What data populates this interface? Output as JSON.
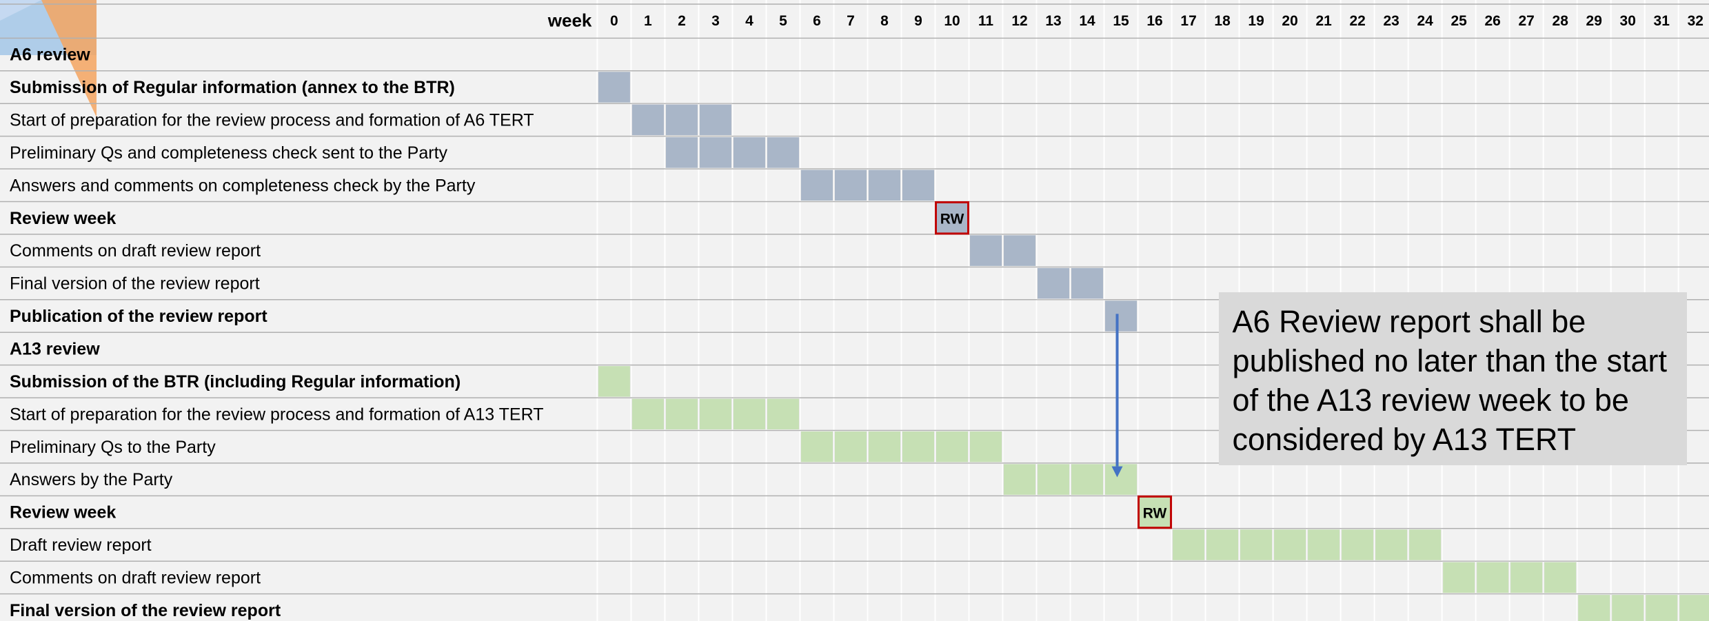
{
  "header": {
    "week_label": "week",
    "weeks": [
      0,
      1,
      2,
      3,
      4,
      5,
      6,
      7,
      8,
      9,
      10,
      11,
      12,
      13,
      14,
      15,
      16,
      17,
      18,
      19,
      20,
      21,
      22,
      23,
      24,
      25,
      26,
      27,
      28,
      29,
      30,
      31,
      32
    ]
  },
  "tasks": [
    {
      "label": "A6 review",
      "bold": true
    },
    {
      "label": "Submission of Regular information (annex to the BTR)",
      "bold": true,
      "start": 0,
      "end": 0,
      "color": "#a9b6c8"
    },
    {
      "label": "Start of preparation for the review process and formation of A6 TERT",
      "bold": false,
      "start": 1,
      "end": 3,
      "color": "#a9b6c8"
    },
    {
      "label": "Preliminary Qs and completeness check sent to the Party",
      "bold": false,
      "start": 2,
      "end": 5,
      "color": "#a9b6c8"
    },
    {
      "label": "Answers and comments on completeness check by the Party",
      "bold": false,
      "start": 6,
      "end": 9,
      "color": "#a9b6c8"
    },
    {
      "label": "Review week",
      "bold": true,
      "start": 10,
      "end": 10,
      "color": "#a9b6c8",
      "marker": "RW"
    },
    {
      "label": "Comments on draft review report",
      "bold": false,
      "start": 11,
      "end": 12,
      "color": "#a9b6c8"
    },
    {
      "label": "Final version of the review report",
      "bold": false,
      "start": 13,
      "end": 14,
      "color": "#a9b6c8"
    },
    {
      "label": "Publication of the review report",
      "bold": true,
      "start": 15,
      "end": 15,
      "color": "#a9b6c8"
    },
    {
      "label": "A13 review",
      "bold": true
    },
    {
      "label": "Submission of the BTR (including Regular information)",
      "bold": true,
      "start": 0,
      "end": 0,
      "color": "#c6e0b4"
    },
    {
      "label": "Start of preparation for the review process and formation of A13 TERT",
      "bold": false,
      "start": 1,
      "end": 5,
      "color": "#c6e0b4"
    },
    {
      "label": "Preliminary Qs to the Party",
      "bold": false,
      "start": 6,
      "end": 11,
      "color": "#c6e0b4"
    },
    {
      "label": "Answers by the Party",
      "bold": false,
      "start": 12,
      "end": 15,
      "color": "#c6e0b4"
    },
    {
      "label": "Review week",
      "bold": true,
      "start": 16,
      "end": 16,
      "color": "#c6e0b4",
      "marker": "RW"
    },
    {
      "label": "Draft review report",
      "bold": false,
      "start": 17,
      "end": 24,
      "color": "#c6e0b4"
    },
    {
      "label": "Comments on draft review report",
      "bold": false,
      "start": 25,
      "end": 28,
      "color": "#c6e0b4"
    },
    {
      "label": "Final version of the review report",
      "bold": true,
      "start": 29,
      "end": 32,
      "color": "#c6e0b4"
    }
  ],
  "callout": "A6 Review report shall be published no later than the start of the A13 review week to be considered by A13 TERT"
}
